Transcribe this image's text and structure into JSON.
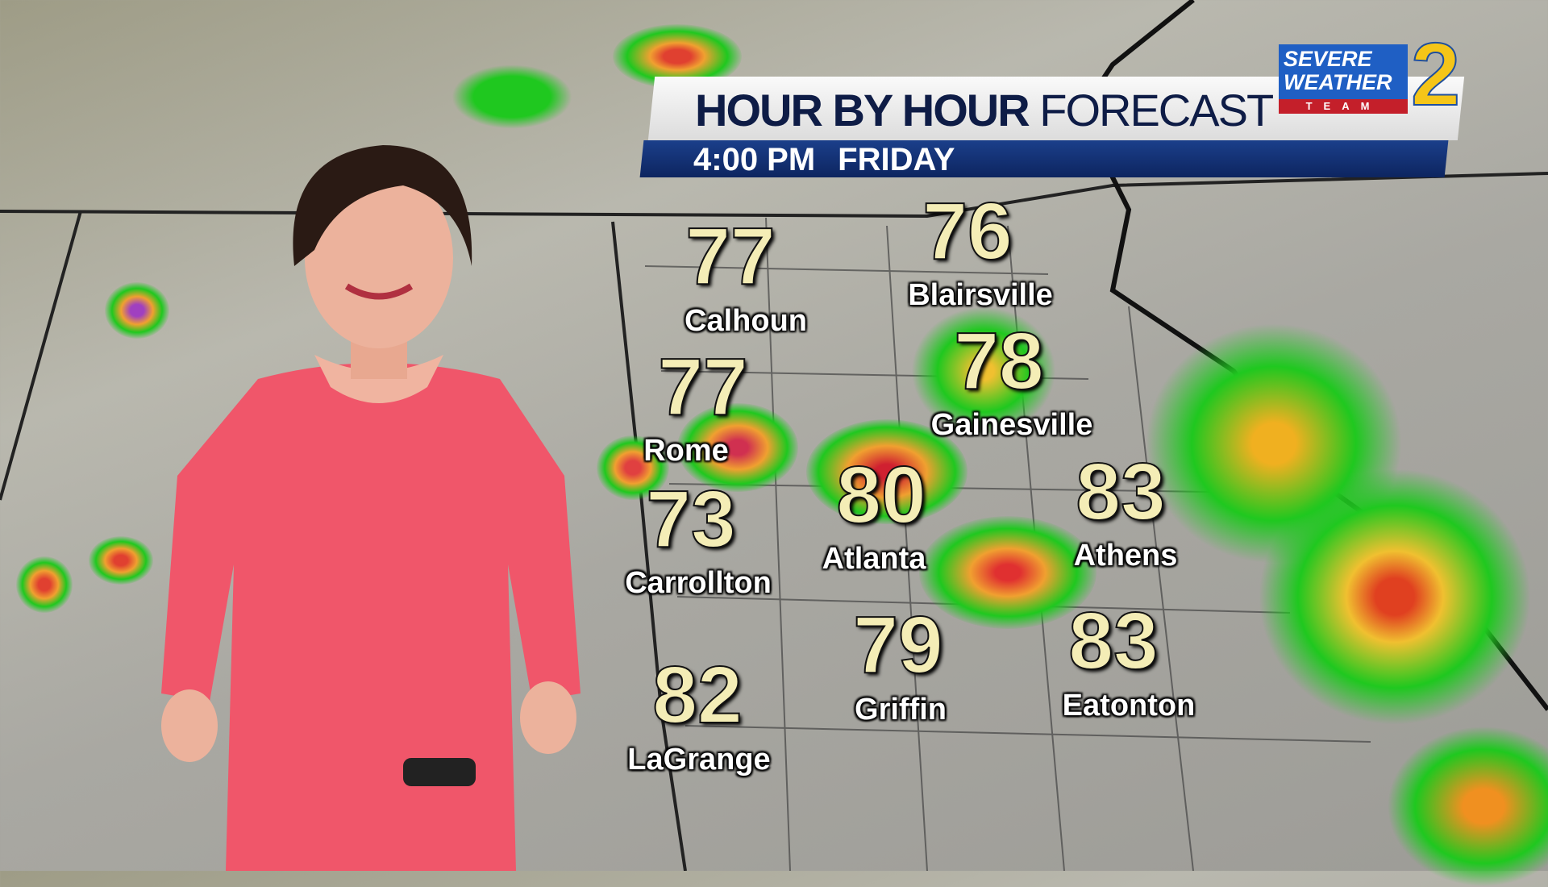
{
  "banner": {
    "title_bold": "HOUR BY HOUR",
    "title_light": "FORECAST",
    "time": "4:00 PM",
    "day": "FRIDAY"
  },
  "logo": {
    "line1": "SEVERE",
    "line2": "WEATHER",
    "team": "TEAM",
    "number": "2",
    "colors": {
      "blue": "#1f5fc4",
      "red": "#c41f2a",
      "yellow": "#f5c518"
    }
  },
  "cities": [
    {
      "name": "Blairsville",
      "temp": "76"
    },
    {
      "name": "Calhoun",
      "temp": "77"
    },
    {
      "name": "Gainesville",
      "temp": "78"
    },
    {
      "name": "Rome",
      "temp": "77"
    },
    {
      "name": "Athens",
      "temp": "83"
    },
    {
      "name": "Atlanta",
      "temp": "80"
    },
    {
      "name": "Carrollton",
      "temp": "73"
    },
    {
      "name": "Griffin",
      "temp": "79"
    },
    {
      "name": "Eatonton",
      "temp": "83"
    },
    {
      "name": "LaGrange",
      "temp": "82"
    }
  ]
}
